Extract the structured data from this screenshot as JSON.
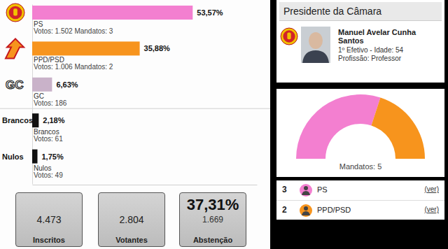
{
  "chart_data": [
    {
      "type": "bar",
      "orientation": "horizontal",
      "categories": [
        "PS",
        "PPD/PSD",
        "GC",
        "Brancos",
        "Nulos"
      ],
      "values": [
        53.57,
        35.88,
        6.63,
        2.18,
        1.75
      ],
      "value_labels": [
        "53,57%",
        "35,88%",
        "6,63%",
        "2,18%",
        "1,75%"
      ],
      "colors": [
        "#f37fd0",
        "#f7941d",
        "#c9b2c9",
        "#111111",
        "#111111"
      ],
      "annotations": [
        "Votos: 1.502 Mandatos: 3",
        "Votos: 1.006 Mandatos: 2",
        "Votos: 186",
        "Votos: 61",
        "Votos: 49"
      ],
      "row_labels": [
        null,
        null,
        "GC",
        "Brancos",
        "Nulos"
      ],
      "data_labels": true,
      "tick_labels": false,
      "xlim": [
        0,
        75
      ],
      "xticks": []
    },
    {
      "type": "donut",
      "title": "Mandatos: 5",
      "categories": [
        "PS",
        "PPD/PSD"
      ],
      "values": [
        3,
        2
      ],
      "colors": [
        "#f37fd0",
        "#f7941d"
      ],
      "legend": "bottom"
    }
  ],
  "seats_panel": {
    "link": "(ver)"
  },
  "stats": [
    {
      "value": "4.473",
      "label": "Inscritos"
    },
    {
      "value": "2.804",
      "label": "Votantes"
    },
    {
      "value": "37,31%",
      "sub": "1.669",
      "label": "Abstenção"
    }
  ],
  "president": {
    "title": "Presidente da Câmara",
    "name": "Manuel Avelar Cunha Santos",
    "line1": "1º Efetivo - Idade: 54",
    "line2": "Profissão: Professor"
  }
}
